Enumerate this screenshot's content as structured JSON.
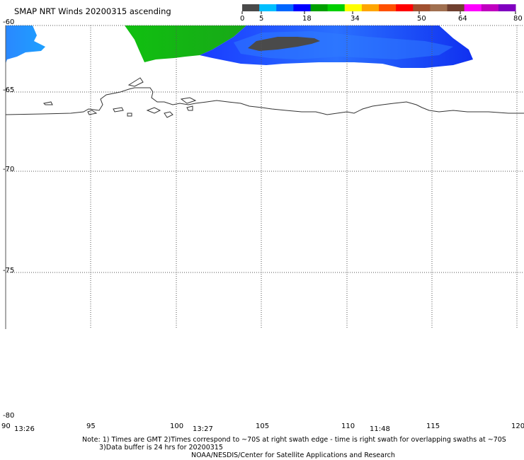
{
  "title": "SMAP NRT Winds 20200315 ascending",
  "colorbar": {
    "ticks": [
      "0",
      "5",
      "18",
      "34",
      "50",
      "64",
      "80"
    ],
    "segments": [
      "#4a4a4a",
      "#00bfff",
      "#0066ff",
      "#0000ff",
      "#00a000",
      "#00d000",
      "#ffff00",
      "#ffa500",
      "#ff5000",
      "#ff0000",
      "#a05030",
      "#a07050",
      "#704030",
      "#ff00ff",
      "#c000c0",
      "#8000c0"
    ]
  },
  "map": {
    "lat_labels": [
      "-60",
      "-65",
      "-70",
      "-75",
      "-80"
    ],
    "lon_labels": [
      "90",
      "95",
      "100",
      "105",
      "110",
      "115",
      "120"
    ],
    "time_labels": [
      "13:26",
      "13:27",
      "11:48"
    ],
    "colors": {
      "land_outline": "#333333",
      "grid": "#555555",
      "wind_green": "#11bb11",
      "wind_blue": "#1a3cff",
      "wind_light_blue": "#2a88ff",
      "wind_dark": "#4a4a4a"
    }
  },
  "notes": {
    "line1": "Note: 1) Times are GMT 2)Times correspond to ~70S at right swath edge - time is right swath for overlapping swaths at ~70S",
    "line2": "3)Data buffer is 24 hrs for 20200315",
    "line3": "NOAA/NESDIS/Center for Satellite Applications and Research"
  }
}
